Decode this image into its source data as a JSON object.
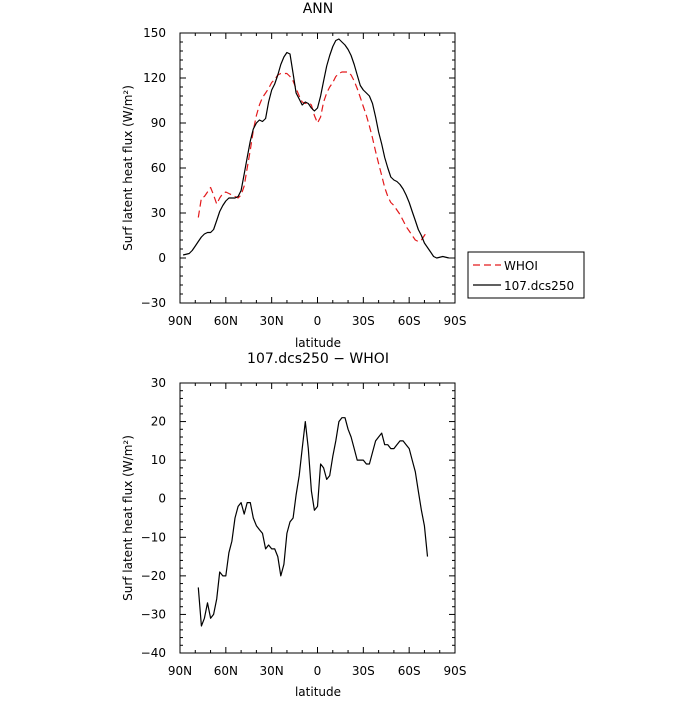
{
  "chart_data": [
    {
      "type": "line",
      "title": "ANN",
      "xlabel": "latitude",
      "ylabel": "Surf latent heat flux (W/m²)",
      "xlim": [
        90,
        -90
      ],
      "ylim": [
        -30,
        150
      ],
      "x_ticks": [
        90,
        60,
        30,
        0,
        -30,
        -60,
        -90
      ],
      "x_tick_labels": [
        "90N",
        "60N",
        "30N",
        "0",
        "30S",
        "60S",
        "90S"
      ],
      "y_ticks": [
        -30,
        0,
        30,
        60,
        90,
        120,
        150
      ],
      "y_tick_labels": [
        "−30",
        "0",
        "30",
        "60",
        "90",
        "120",
        "150"
      ],
      "grid": false,
      "legend": "outside-right",
      "series": [
        {
          "name": "WHOI",
          "color": "#e31a1c",
          "dash": "dashed",
          "points": [
            [
              78,
              27
            ],
            [
              76,
              40
            ],
            [
              74,
              41
            ],
            [
              72,
              44
            ],
            [
              70,
              47
            ],
            [
              68,
              42
            ],
            [
              66,
              36
            ],
            [
              64,
              40
            ],
            [
              62,
              43
            ],
            [
              60,
              44
            ],
            [
              58,
              43
            ],
            [
              56,
              42
            ],
            [
              54,
              41
            ],
            [
              52,
              40
            ],
            [
              50,
              42
            ],
            [
              48,
              48
            ],
            [
              46,
              60
            ],
            [
              44,
              72
            ],
            [
              42,
              85
            ],
            [
              40,
              95
            ],
            [
              38,
              102
            ],
            [
              36,
              107
            ],
            [
              34,
              110
            ],
            [
              32,
              113
            ],
            [
              30,
              117
            ],
            [
              28,
              119
            ],
            [
              26,
              122
            ],
            [
              24,
              123
            ],
            [
              22,
              123
            ],
            [
              20,
              123
            ],
            [
              18,
              121
            ],
            [
              16,
              118
            ],
            [
              14,
              113
            ],
            [
              12,
              108
            ],
            [
              10,
              104
            ],
            [
              8,
              103
            ],
            [
              6,
              104
            ],
            [
              4,
              102
            ],
            [
              2,
              95
            ],
            [
              0,
              90
            ],
            [
              -2,
              94
            ],
            [
              -4,
              104
            ],
            [
              -6,
              110
            ],
            [
              -8,
              114
            ],
            [
              -10,
              117
            ],
            [
              -12,
              121
            ],
            [
              -14,
              123
            ],
            [
              -16,
              124
            ],
            [
              -18,
              124
            ],
            [
              -20,
              124
            ],
            [
              -22,
              122
            ],
            [
              -24,
              118
            ],
            [
              -26,
              113
            ],
            [
              -28,
              107
            ],
            [
              -30,
              101
            ],
            [
              -32,
              95
            ],
            [
              -34,
              88
            ],
            [
              -36,
              80
            ],
            [
              -38,
              71
            ],
            [
              -40,
              63
            ],
            [
              -42,
              55
            ],
            [
              -44,
              47
            ],
            [
              -46,
              41
            ],
            [
              -48,
              37
            ],
            [
              -50,
              35
            ],
            [
              -52,
              32
            ],
            [
              -54,
              29
            ],
            [
              -56,
              25
            ],
            [
              -58,
              21
            ],
            [
              -60,
              18
            ],
            [
              -62,
              15
            ],
            [
              -64,
              12
            ],
            [
              -66,
              11
            ],
            [
              -68,
              12
            ],
            [
              -70,
              15
            ],
            [
              -72,
              18
            ]
          ]
        },
        {
          "name": "107.dcs250",
          "color": "#000000",
          "dash": "solid",
          "points": [
            [
              88,
              2
            ],
            [
              84,
              3
            ],
            [
              82,
              5
            ],
            [
              80,
              8
            ],
            [
              78,
              11
            ],
            [
              76,
              14
            ],
            [
              74,
              16
            ],
            [
              72,
              17
            ],
            [
              70,
              17
            ],
            [
              68,
              19
            ],
            [
              66,
              25
            ],
            [
              64,
              31
            ],
            [
              62,
              35
            ],
            [
              60,
              38
            ],
            [
              58,
              40
            ],
            [
              56,
              40
            ],
            [
              54,
              40
            ],
            [
              52,
              41
            ],
            [
              50,
              45
            ],
            [
              48,
              56
            ],
            [
              46,
              67
            ],
            [
              44,
              78
            ],
            [
              42,
              86
            ],
            [
              40,
              90
            ],
            [
              38,
              92
            ],
            [
              36,
              91
            ],
            [
              34,
              93
            ],
            [
              32,
              104
            ],
            [
              30,
              112
            ],
            [
              28,
              116
            ],
            [
              26,
              122
            ],
            [
              24,
              129
            ],
            [
              22,
              134
            ],
            [
              20,
              137
            ],
            [
              18,
              136
            ],
            [
              16,
              123
            ],
            [
              14,
              110
            ],
            [
              12,
              106
            ],
            [
              10,
              102
            ],
            [
              8,
              104
            ],
            [
              6,
              103
            ],
            [
              4,
              100
            ],
            [
              2,
              98
            ],
            [
              0,
              100
            ],
            [
              -2,
              108
            ],
            [
              -4,
              118
            ],
            [
              -6,
              128
            ],
            [
              -8,
              135
            ],
            [
              -10,
              141
            ],
            [
              -12,
              145
            ],
            [
              -14,
              146
            ],
            [
              -16,
              144
            ],
            [
              -18,
              142
            ],
            [
              -20,
              139
            ],
            [
              -22,
              135
            ],
            [
              -24,
              129
            ],
            [
              -26,
              122
            ],
            [
              -28,
              115
            ],
            [
              -30,
              112
            ],
            [
              -32,
              110
            ],
            [
              -34,
              108
            ],
            [
              -36,
              103
            ],
            [
              -38,
              94
            ],
            [
              -40,
              84
            ],
            [
              -42,
              76
            ],
            [
              -44,
              67
            ],
            [
              -46,
              60
            ],
            [
              -48,
              54
            ],
            [
              -50,
              52
            ],
            [
              -52,
              51
            ],
            [
              -54,
              49
            ],
            [
              -56,
              46
            ],
            [
              -58,
              42
            ],
            [
              -60,
              37
            ],
            [
              -62,
              31
            ],
            [
              -64,
              25
            ],
            [
              -66,
              19
            ],
            [
              -68,
              15
            ],
            [
              -70,
              10
            ],
            [
              -72,
              7
            ],
            [
              -74,
              4
            ],
            [
              -76,
              1
            ],
            [
              -78,
              0
            ],
            [
              -82,
              1
            ],
            [
              -86,
              0
            ]
          ]
        }
      ]
    },
    {
      "type": "line",
      "title": "107.dcs250 − WHOI",
      "xlabel": "latitude",
      "ylabel": "Surf latent heat flux (W/m²)",
      "xlim": [
        90,
        -90
      ],
      "ylim": [
        -40,
        30
      ],
      "x_ticks": [
        90,
        60,
        30,
        0,
        -30,
        -60,
        -90
      ],
      "x_tick_labels": [
        "90N",
        "60N",
        "30N",
        "0",
        "30S",
        "60S",
        "90S"
      ],
      "y_ticks": [
        -40,
        -30,
        -20,
        -10,
        0,
        10,
        20,
        30
      ],
      "y_tick_labels": [
        "−40",
        "−30",
        "−20",
        "−10",
        "0",
        "10",
        "20",
        "30"
      ],
      "grid": false,
      "legend": "none",
      "series": [
        {
          "name": "",
          "color": "#000000",
          "dash": "solid",
          "points": [
            [
              78,
              -23
            ],
            [
              76,
              -33
            ],
            [
              74,
              -31
            ],
            [
              72,
              -27
            ],
            [
              70,
              -31
            ],
            [
              68,
              -30
            ],
            [
              66,
              -26
            ],
            [
              64,
              -19
            ],
            [
              62,
              -20
            ],
            [
              60,
              -20
            ],
            [
              58,
              -14
            ],
            [
              56,
              -11
            ],
            [
              54,
              -5
            ],
            [
              52,
              -2
            ],
            [
              50,
              -1
            ],
            [
              48,
              -4
            ],
            [
              46,
              -1
            ],
            [
              44,
              -1
            ],
            [
              42,
              -5
            ],
            [
              40,
              -7
            ],
            [
              38,
              -8
            ],
            [
              36,
              -9
            ],
            [
              34,
              -13
            ],
            [
              32,
              -12
            ],
            [
              30,
              -13
            ],
            [
              28,
              -13
            ],
            [
              26,
              -15
            ],
            [
              24,
              -20
            ],
            [
              22,
              -17
            ],
            [
              20,
              -9
            ],
            [
              18,
              -6
            ],
            [
              16,
              -5
            ],
            [
              14,
              1
            ],
            [
              12,
              6
            ],
            [
              10,
              13
            ],
            [
              8,
              20
            ],
            [
              6,
              13
            ],
            [
              4,
              2
            ],
            [
              2,
              -3
            ],
            [
              0,
              -2
            ],
            [
              -2,
              9
            ],
            [
              -4,
              8
            ],
            [
              -6,
              5
            ],
            [
              -8,
              6
            ],
            [
              -10,
              11
            ],
            [
              -12,
              15
            ],
            [
              -14,
              20
            ],
            [
              -16,
              21
            ],
            [
              -18,
              21
            ],
            [
              -20,
              18
            ],
            [
              -22,
              16
            ],
            [
              -24,
              13
            ],
            [
              -26,
              10
            ],
            [
              -28,
              10
            ],
            [
              -30,
              10
            ],
            [
              -32,
              9
            ],
            [
              -34,
              9
            ],
            [
              -36,
              12
            ],
            [
              -38,
              15
            ],
            [
              -40,
              16
            ],
            [
              -42,
              17
            ],
            [
              -44,
              14
            ],
            [
              -46,
              14
            ],
            [
              -48,
              13
            ],
            [
              -50,
              13
            ],
            [
              -52,
              14
            ],
            [
              -54,
              15
            ],
            [
              -56,
              15
            ],
            [
              -58,
              14
            ],
            [
              -60,
              13
            ],
            [
              -62,
              10
            ],
            [
              -64,
              7
            ],
            [
              -66,
              2
            ],
            [
              -68,
              -3
            ],
            [
              -70,
              -7
            ],
            [
              -72,
              -15
            ]
          ]
        }
      ]
    }
  ]
}
